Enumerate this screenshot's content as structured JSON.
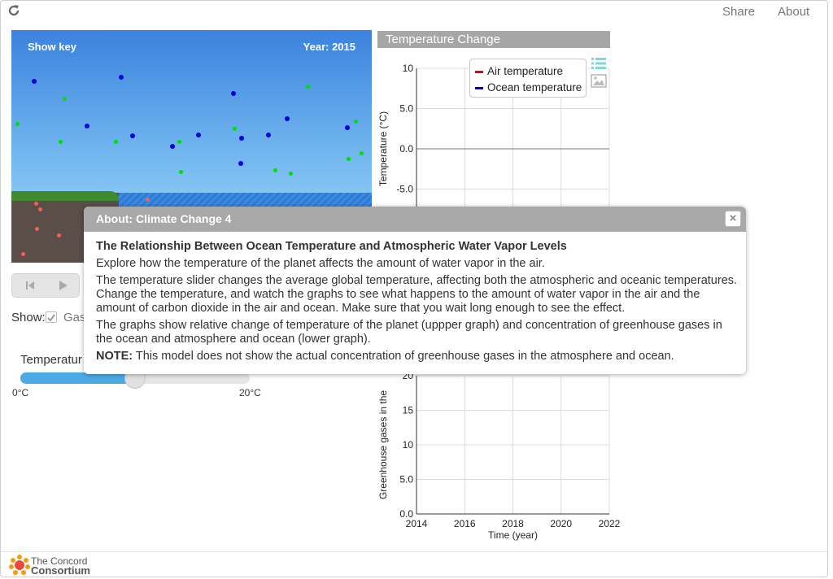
{
  "header": {
    "share_label": "Share",
    "about_label": "About"
  },
  "model": {
    "show_key_label": "Show key",
    "year_label": "Year: 2015",
    "colors": {
      "water_vapor": "#00e000",
      "co2": "#0000dd",
      "co2_ocean": "#ff5a5a"
    }
  },
  "controls": {
    "show_label": "Show:",
    "gas_label": "Gas",
    "temperature_label": "Temperatur",
    "slider_value_percent": 50,
    "min_label": "0°C",
    "max_label": "20°C"
  },
  "graph": {
    "title": "Temperature Change"
  },
  "legend": {
    "items": [
      {
        "label": "Air temperature",
        "color": "#ee0000"
      },
      {
        "label": "Ocean temperature",
        "color": "#0000cc"
      }
    ]
  },
  "chart_data": [
    {
      "type": "line",
      "ylabel": "Temperature (°C)",
      "xlabel": "",
      "xlim": [
        2014,
        2022
      ],
      "ylim": [
        -10,
        10
      ],
      "yticks": [
        "10",
        "5.0",
        "0.0",
        "-5.0"
      ],
      "series": [
        {
          "name": "Air temperature",
          "x": [],
          "values": []
        },
        {
          "name": "Ocean temperature",
          "x": [],
          "values": []
        }
      ],
      "grid": true
    },
    {
      "type": "line",
      "ylabel": "Greenhouse gases in the",
      "xlabel": "Time (year)",
      "xlim": [
        2014,
        2022
      ],
      "ylim": [
        0,
        20
      ],
      "yticks": [
        "20",
        "15",
        "10",
        "5.0",
        "0.0"
      ],
      "xticks": [
        "2014",
        "2016",
        "2018",
        "2020",
        "2022"
      ],
      "series": [],
      "grid": true
    }
  ],
  "dialog": {
    "title": "About: Climate Change 4",
    "close_label": "×",
    "heading": "The Relationship Between Ocean Temperature and Atmospheric Water Vapor Levels",
    "p1": "Explore how the temperature of the planet affects the amount of water vapor in the air.",
    "p2": "The temperature slider changes the average global temperature, affecting both the atmospheric and oceanic temperatures. Change the temperature, and watch the graphs to see what happens to the amount of water vapor in the air and the amount of carbon dioxide in the air and ocean. Make sure that you wait long enough to see the effect.",
    "p3": "The graphs show relative change of temperature of the planet (uppper graph) and concentration of greenhouse gases in the ocean and atmosphere and ocean (lower graph).",
    "note_label": "NOTE:",
    "note_text": " This model does not show the actual concentration of greenhouse gases in the atmosphere and ocean."
  },
  "footer": {
    "logo_line1": "The Concord",
    "logo_line2": "Consortium"
  }
}
